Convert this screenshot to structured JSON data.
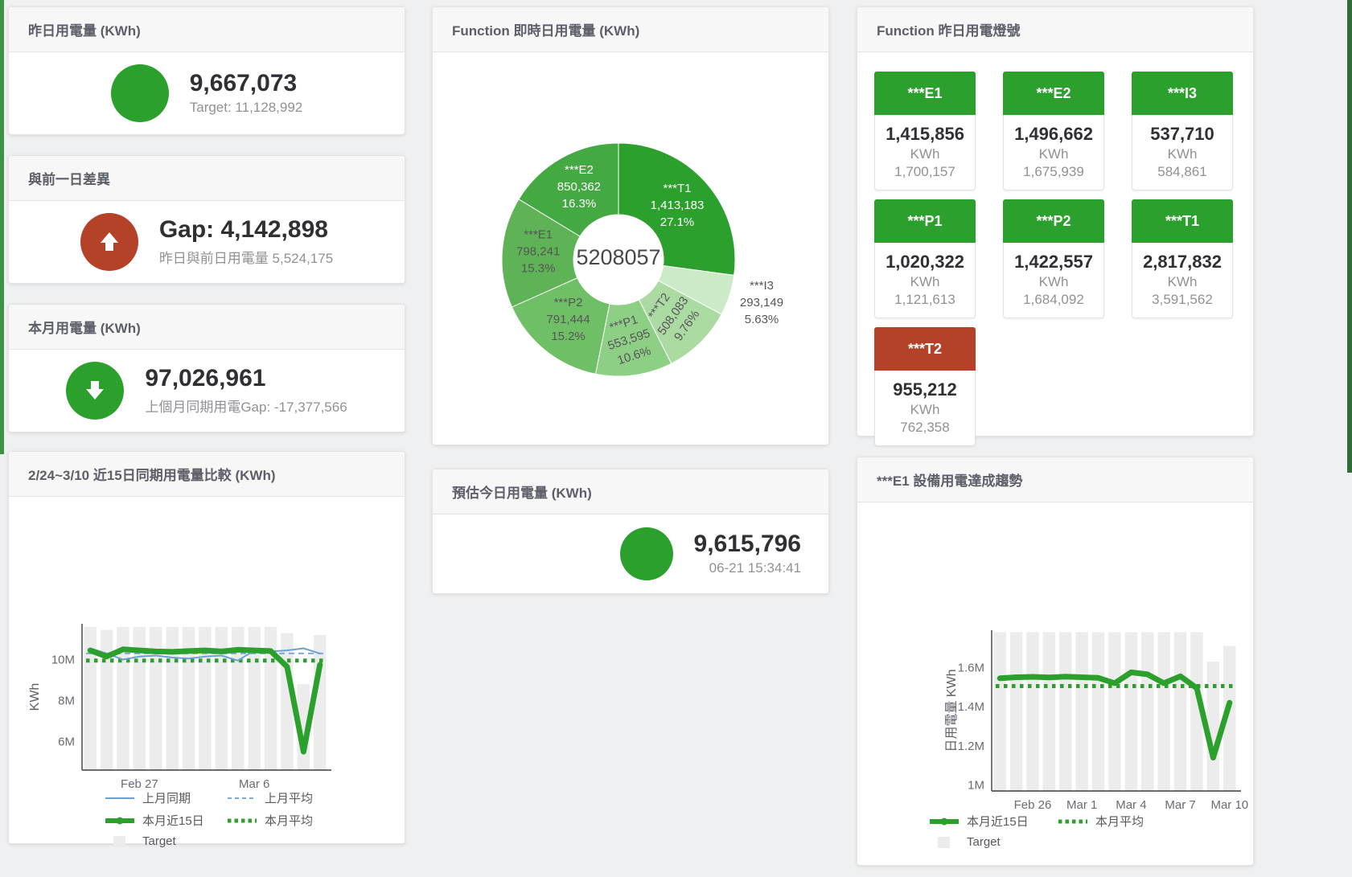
{
  "page": {
    "background": "#eef0f1",
    "accent_green": "#2ca02c",
    "accent_red": "#b44229",
    "accent_blue": "#6e9fd4",
    "target_gray": "#ececec"
  },
  "panels": {
    "yesterday": {
      "title": "昨日用電量 (KWh)",
      "value": "9,667,073",
      "sub": "Target: 11,128,992"
    },
    "day_gap": {
      "title": "與前一日差異",
      "value": "Gap: 4,142,898",
      "sub": "昨日與前日用電量 5,524,175"
    },
    "month": {
      "title": "本月用電量 (KWh)",
      "value": "97,026,961",
      "sub": "上個月同期用電Gap: -17,377,566"
    },
    "realtime_donut": {
      "title": "Function 即時日用電量 (KWh)"
    },
    "lights": {
      "title": "Function 昨日用電燈號"
    },
    "compare": {
      "title": "2/24~3/10 近15日同期用電量比較 (KWh)"
    },
    "estimate": {
      "title": "預估今日用電量 (KWh)",
      "value": "9,615,796",
      "sub": "06-21 15:34:41"
    },
    "trend": {
      "title": "***E1 設備用電達成趨勢"
    }
  },
  "lights": [
    {
      "label": "***E1",
      "value": "1,415,856",
      "unit": "KWh",
      "target": "1,700,157",
      "status": "green"
    },
    {
      "label": "***E2",
      "value": "1,496,662",
      "unit": "KWh",
      "target": "1,675,939",
      "status": "green"
    },
    {
      "label": "***I3",
      "value": "537,710",
      "unit": "KWh",
      "target": "584,861",
      "status": "green"
    },
    {
      "label": "***P1",
      "value": "1,020,322",
      "unit": "KWh",
      "target": "1,121,613",
      "status": "green"
    },
    {
      "label": "***P2",
      "value": "1,422,557",
      "unit": "KWh",
      "target": "1,684,092",
      "status": "green"
    },
    {
      "label": "***T1",
      "value": "2,817,832",
      "unit": "KWh",
      "target": "3,591,562",
      "status": "green"
    },
    {
      "label": "***T2",
      "value": "955,212",
      "unit": "KWh",
      "target": "762,358",
      "status": "red"
    }
  ],
  "chart_data": [
    {
      "id": "donut",
      "type": "pie",
      "title": "Function 即時日用電量 (KWh)",
      "center_label": "5208057",
      "slices": [
        {
          "name": "***T1",
          "value": 1413183,
          "display": "1,413,183",
          "pct": "27.1%",
          "color": "#2ca02c",
          "label_color": "#ffffff",
          "label_r": 97,
          "rot": 0,
          "outside": false
        },
        {
          "name": "***I3",
          "value": 293149,
          "display": "293,149",
          "pct": "5.63%",
          "color": "#cbeac6",
          "label_color": "#555555",
          "label_r": 187,
          "rot": 0,
          "outside": true
        },
        {
          "name": "***T2",
          "value": 508083,
          "display": "508,083",
          "pct": "9.76%",
          "color": "#abdba3",
          "label_color": "#555555",
          "label_r": 101,
          "rot": -55,
          "outside": false
        },
        {
          "name": "***P1",
          "value": 553595,
          "display": "553,595",
          "pct": "10.6%",
          "color": "#8ecf86",
          "label_color": "#555555",
          "label_r": 104,
          "rot": -18,
          "outside": false
        },
        {
          "name": "***P2",
          "value": 791444,
          "display": "791,444",
          "pct": "15.2%",
          "color": "#6fbf66",
          "label_color": "#555555",
          "label_r": 100,
          "rot": 0,
          "outside": false
        },
        {
          "name": "***E1",
          "value": 798241,
          "display": "798,241",
          "pct": "15.3%",
          "color": "#5db356",
          "label_color": "#555555",
          "label_r": 100,
          "rot": 0,
          "outside": false
        },
        {
          "name": "***E2",
          "value": 850362,
          "display": "850,362",
          "pct": "16.3%",
          "color": "#44a943",
          "label_color": "#ffffff",
          "label_r": 100,
          "rot": 0,
          "outside": false
        }
      ]
    },
    {
      "id": "compare",
      "type": "line",
      "title": "2/24~3/10 近15日同期用電量比較 (KWh)",
      "ylabel": "KWh",
      "x_count": 15,
      "ylim": [
        4.6,
        11.75
      ],
      "yticks": [
        {
          "v": 6,
          "label": "6M"
        },
        {
          "v": 8,
          "label": "8M"
        },
        {
          "v": 10,
          "label": "10M"
        }
      ],
      "xticks": [
        {
          "i": 3,
          "label": "Feb 27"
        },
        {
          "i": 10,
          "label": "Mar 6"
        }
      ],
      "series": [
        {
          "name": "Target",
          "kind": "bar",
          "color": "#ececec",
          "values": [
            11.6,
            11.45,
            11.6,
            11.6,
            11.6,
            11.6,
            11.6,
            11.6,
            11.6,
            11.6,
            11.6,
            11.6,
            11.3,
            8.8,
            11.2
          ]
        },
        {
          "name": "上月平均",
          "kind": "hline",
          "style": "dashed",
          "color": "#7fa9d8",
          "width": 2,
          "value": 10.3
        },
        {
          "name": "本月平均",
          "kind": "hline",
          "style": "dotted",
          "color": "#2ca02c",
          "width": 5,
          "value": 9.95
        },
        {
          "name": "上月同期",
          "kind": "line",
          "style": "solid",
          "color": "#6e9fd4",
          "width": 2,
          "values": [
            10.55,
            10.3,
            10.0,
            10.15,
            10.2,
            10.1,
            10.05,
            10.15,
            10.2,
            9.95,
            10.45,
            10.4,
            10.45,
            10.55,
            10.3
          ]
        },
        {
          "name": "本月近15日",
          "kind": "line",
          "style": "solid",
          "color": "#2ca02c",
          "width": 7,
          "values": [
            10.45,
            10.15,
            10.5,
            10.45,
            10.4,
            10.38,
            10.42,
            10.45,
            10.4,
            10.48,
            10.45,
            10.42,
            9.65,
            5.5,
            9.75
          ]
        }
      ],
      "legend": [
        [
          {
            "name": "上月同期",
            "swatch": "line",
            "color": "#6e9fd4"
          },
          {
            "name": "上月平均",
            "swatch": "dashed",
            "color": "#7fa9d8"
          }
        ],
        [
          {
            "name": "本月近15日",
            "swatch": "thickline",
            "color": "#2ca02c"
          },
          {
            "name": "本月平均",
            "swatch": "dotted",
            "color": "#2ca02c"
          }
        ],
        [
          {
            "name": "Target",
            "swatch": "box",
            "color": "#ececec"
          }
        ]
      ]
    },
    {
      "id": "trend",
      "type": "line",
      "title": "***E1 設備用電達成趨勢",
      "ylabel": "日用電量 KWh",
      "x_count": 15,
      "ylim": [
        0.97,
        1.79
      ],
      "yticks": [
        {
          "v": 1,
          "label": "1M"
        },
        {
          "v": 1.2,
          "label": "1.2M"
        },
        {
          "v": 1.4,
          "label": "1.4M"
        },
        {
          "v": 1.6,
          "label": "1.6M"
        }
      ],
      "xticks": [
        {
          "i": 2,
          "label": "Feb 26"
        },
        {
          "i": 5,
          "label": "Mar 1"
        },
        {
          "i": 8,
          "label": "Mar 4"
        },
        {
          "i": 11,
          "label": "Mar 7"
        },
        {
          "i": 14,
          "label": "Mar 10"
        }
      ],
      "series": [
        {
          "name": "Target",
          "kind": "bar",
          "color": "#ececec",
          "values": [
            1.78,
            1.78,
            1.78,
            1.78,
            1.78,
            1.78,
            1.78,
            1.78,
            1.78,
            1.78,
            1.78,
            1.78,
            1.78,
            1.63,
            1.71
          ]
        },
        {
          "name": "本月平均",
          "kind": "hline",
          "style": "dotted",
          "color": "#2ca02c",
          "width": 5,
          "value": 1.505
        },
        {
          "name": "本月近15日",
          "kind": "line",
          "style": "solid",
          "color": "#2ca02c",
          "width": 7,
          "values": [
            1.545,
            1.55,
            1.552,
            1.549,
            1.553,
            1.55,
            1.547,
            1.52,
            1.575,
            1.565,
            1.52,
            1.555,
            1.495,
            1.14,
            1.42
          ]
        }
      ],
      "legend": [
        [
          {
            "name": "本月近15日",
            "swatch": "thickline",
            "color": "#2ca02c"
          },
          {
            "name": "本月平均",
            "swatch": "dotted",
            "color": "#2ca02c"
          }
        ],
        [
          {
            "name": "Target",
            "swatch": "box",
            "color": "#ececec"
          }
        ]
      ]
    }
  ]
}
